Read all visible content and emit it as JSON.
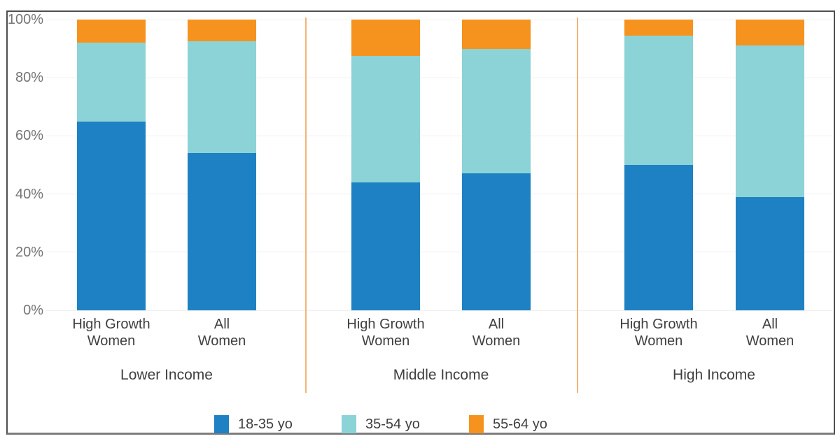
{
  "chart_data": {
    "type": "bar",
    "stacked": true,
    "title": "",
    "xlabel": "",
    "ylabel": "",
    "ylim": [
      0,
      100
    ],
    "ytick_step": 20,
    "ytick_suffix": "%",
    "grid": true,
    "legend_position": "bottom",
    "series": [
      {
        "name": "18-35 yo",
        "color": "#1E81C3"
      },
      {
        "name": "35-54 yo",
        "color": "#8BD3D6"
      },
      {
        "name": "55-64 yo",
        "color": "#F6921E"
      }
    ],
    "groups": [
      {
        "label": "Lower Income",
        "bars": [
          {
            "label": "High Growth\nWomen",
            "values": {
              "18-35 yo": 65,
              "35-54 yo": 27,
              "55-64 yo": 8
            }
          },
          {
            "label": "All\nWomen",
            "values": {
              "18-35 yo": 54,
              "35-54 yo": 38.5,
              "55-64 yo": 7.5
            }
          }
        ]
      },
      {
        "label": "Middle Income",
        "bars": [
          {
            "label": "High Growth\nWomen",
            "values": {
              "18-35 yo": 44,
              "35-54 yo": 43.5,
              "55-64 yo": 12.5
            }
          },
          {
            "label": "All\nWomen",
            "values": {
              "18-35 yo": 47,
              "35-54 yo": 43,
              "55-64 yo": 10
            }
          }
        ]
      },
      {
        "label": "High Income",
        "bars": [
          {
            "label": "High Growth\nWomen",
            "values": {
              "18-35 yo": 50,
              "35-54 yo": 44.5,
              "55-64 yo": 5.5
            }
          },
          {
            "label": "All\nWomen",
            "values": {
              "18-35 yo": 39,
              "35-54 yo": 52,
              "55-64 yo": 9
            }
          }
        ]
      }
    ]
  },
  "colors": {
    "background": "#FFFFFF",
    "frame_border": "#4F4F4F",
    "grid": "#EFEFEF",
    "separator": "#F5B275",
    "tick_text": "#757575",
    "label_text": "#3F3F3F"
  }
}
